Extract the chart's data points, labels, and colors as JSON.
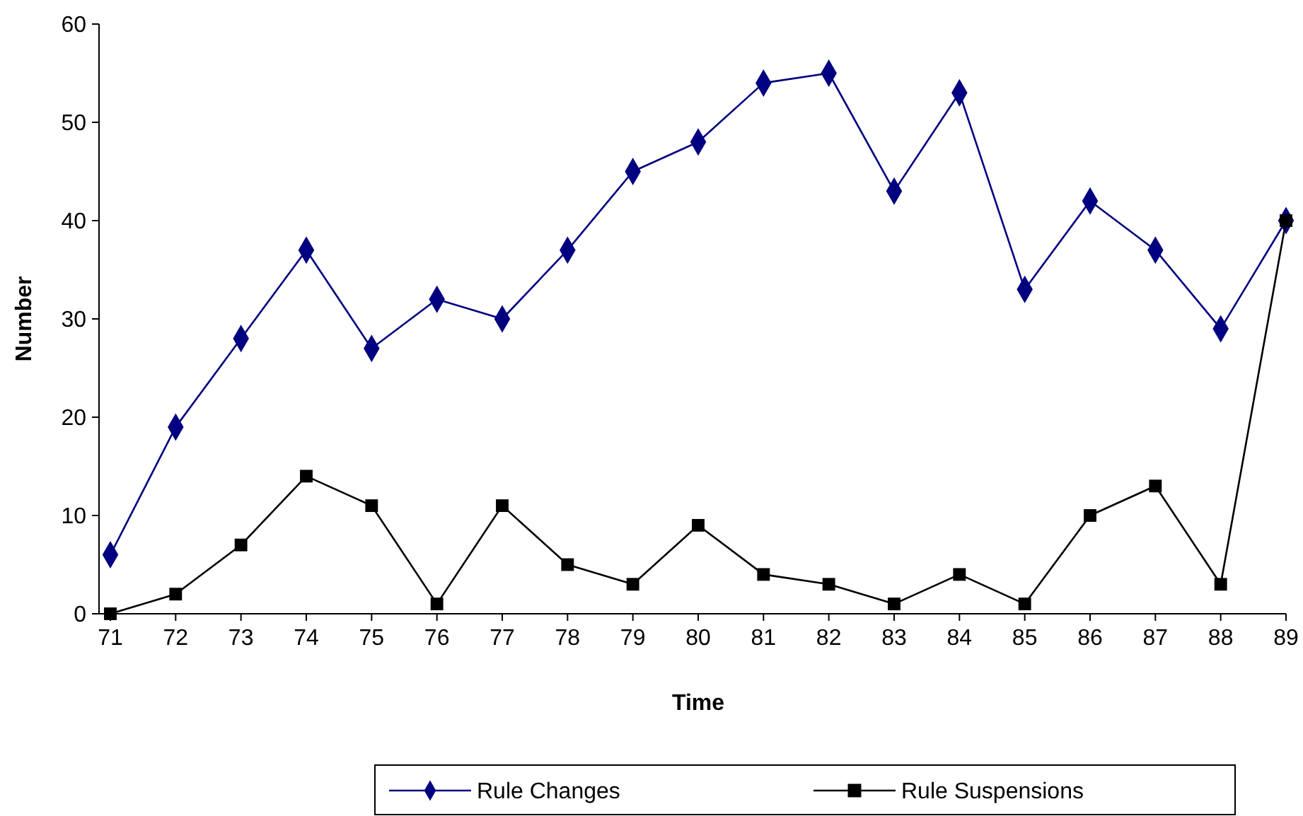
{
  "chart_data": {
    "type": "line",
    "xlabel": "Time",
    "ylabel": "Number",
    "categories": [
      "71",
      "72",
      "73",
      "74",
      "75",
      "76",
      "77",
      "78",
      "79",
      "80",
      "81",
      "82",
      "83",
      "84",
      "85",
      "86",
      "87",
      "88",
      "89"
    ],
    "ylim": [
      0,
      60
    ],
    "yticks": [
      0,
      10,
      20,
      30,
      40,
      50,
      60
    ],
    "grid": false,
    "legend": "bottom",
    "line_style": "solid",
    "series": [
      {
        "name": "Rule Changes",
        "color": "#000080",
        "marker": "diamond",
        "values": [
          6,
          19,
          28,
          37,
          27,
          32,
          30,
          37,
          45,
          48,
          54,
          55,
          43,
          53,
          33,
          42,
          37,
          29,
          40
        ]
      },
      {
        "name": "Rule Suspensions",
        "color": "#000000",
        "marker": "square",
        "values": [
          0,
          2,
          7,
          14,
          11,
          1,
          11,
          5,
          3,
          9,
          4,
          3,
          1,
          4,
          1,
          10,
          13,
          3,
          40
        ]
      }
    ]
  }
}
